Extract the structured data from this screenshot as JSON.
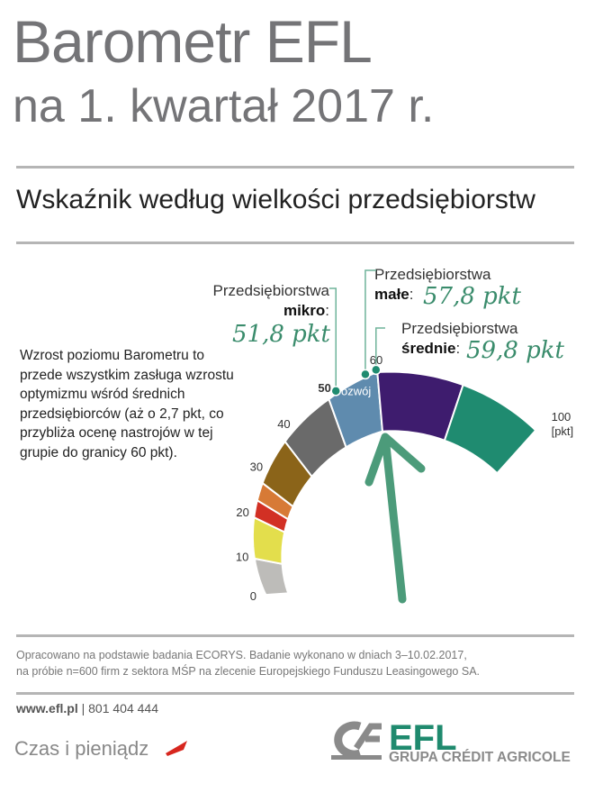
{
  "header": {
    "title": "Barometr EFL",
    "subtitle": "na 1. kwartał 2017 r."
  },
  "section_title": "Wskaźnik według wielkości przedsiębiorstw",
  "description": "Wzrost poziomu Barometru to przede wszystkim zasługa wzrostu optymizmu wśród średnich przedsiębiorców (aż o 2,7 pkt, co przybliża ocenę nastrojów w tej grupie do granicy 60 pkt).",
  "chart_data": {
    "type": "gauge",
    "range": [
      0,
      100
    ],
    "unit": "[pkt]",
    "tick_labels": [
      "0",
      "10",
      "20",
      "30",
      "40",
      "50",
      "60",
      "100"
    ],
    "segments": [
      {
        "from": 0,
        "to": 10,
        "color": "#bdbcb9"
      },
      {
        "from": 10,
        "to": 20,
        "color": "#e3de4c"
      },
      {
        "from": 20,
        "to": 24,
        "color": "#d23024"
      },
      {
        "from": 24,
        "to": 28,
        "color": "#d77a36"
      },
      {
        "from": 28,
        "to": 38,
        "color": "#8b6419"
      },
      {
        "from": 38,
        "to": 50,
        "color": "#6a6a6a"
      },
      {
        "from": 50,
        "to": 60,
        "color": "#5f8bae",
        "label": "rozwój"
      },
      {
        "from": 60,
        "to": 80,
        "color": "#3e1c6e"
      },
      {
        "from": 80,
        "to": 100,
        "color": "#1f8b70"
      }
    ],
    "markers": [
      {
        "name": "mikro",
        "label": "Przedsiębiorstwa",
        "bold": "mikro",
        "value": 51.8,
        "value_label": "51,8 pkt"
      },
      {
        "name": "male",
        "label": "Przedsiębiorstwa",
        "bold": "małe",
        "value": 57.8,
        "value_label": "57,8 pkt"
      },
      {
        "name": "srednie",
        "label": "Przedsiębiorstwa",
        "bold": "średnie",
        "value": 59.8,
        "value_label": "59,8 pkt"
      }
    ],
    "marker_color": "#1f8b70"
  },
  "footer": {
    "note_line1": "Opracowano na podstawie badania ECORYS. Badanie wykonano w dniach 3–10.02.2017,",
    "note_line2": "na próbie n=600 firm z sektora MŚP na zlecenie Europejskiego Funduszu Leasingowego SA.",
    "website": "www.efl.pl",
    "phone": "| 801 404 444",
    "slogan": "Czas i pieniądz",
    "brand": "EFL",
    "group": "GRUPA CRÉDIT AGRICOLE"
  }
}
